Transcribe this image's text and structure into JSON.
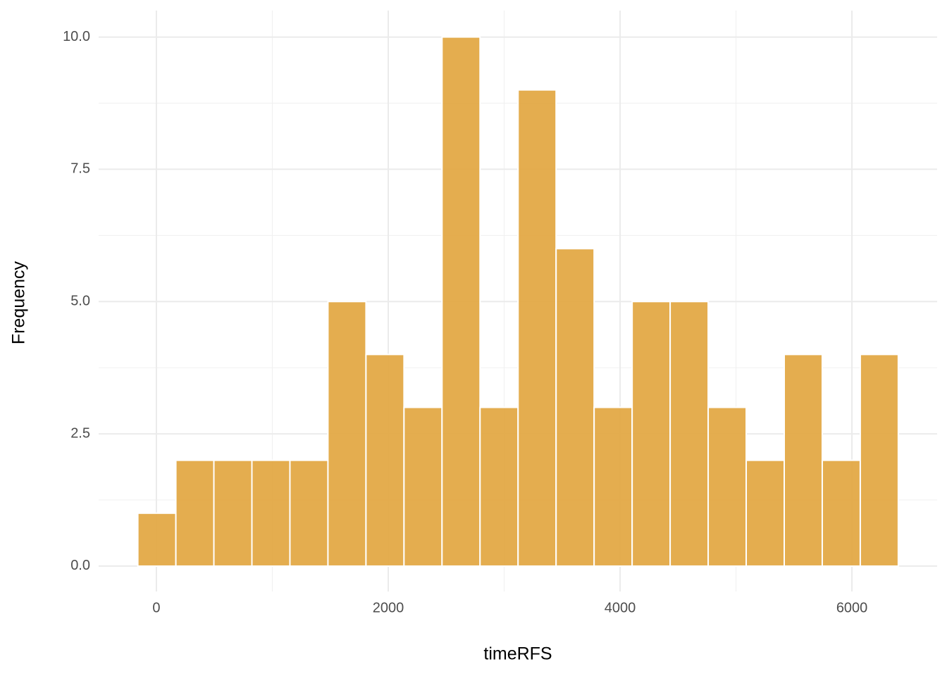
{
  "chart_data": {
    "type": "histogram",
    "x_label": "timeRFS",
    "y_label": "Frequency",
    "bins": [
      -160,
      168,
      496,
      824,
      1152,
      1480,
      1808,
      2136,
      2464,
      2792,
      3120,
      3448,
      3776,
      4104,
      4432,
      4760,
      5088,
      5416,
      5744,
      6072,
      6400
    ],
    "values": [
      1,
      2,
      2,
      2,
      2,
      5,
      4,
      3,
      10,
      3,
      9,
      6,
      3,
      5,
      5,
      3,
      2,
      4,
      2,
      4
    ],
    "color": "#e2a640",
    "xlim": [
      -498,
      6735
    ],
    "xticks": [
      0,
      2000,
      4000,
      6000
    ],
    "x_minor_grid": [
      1000,
      3000,
      5000
    ],
    "ylim": [
      -0.48,
      10.5
    ],
    "yticks": [
      {
        "value": 0,
        "label": "0.0"
      },
      2.5,
      {
        "value": 5,
        "label": "5.0"
      },
      7.5,
      {
        "value": 10,
        "label": "10.0"
      }
    ],
    "y_minor_grid": [
      1.25,
      3.75,
      6.25,
      8.75
    ],
    "grid": true
  }
}
